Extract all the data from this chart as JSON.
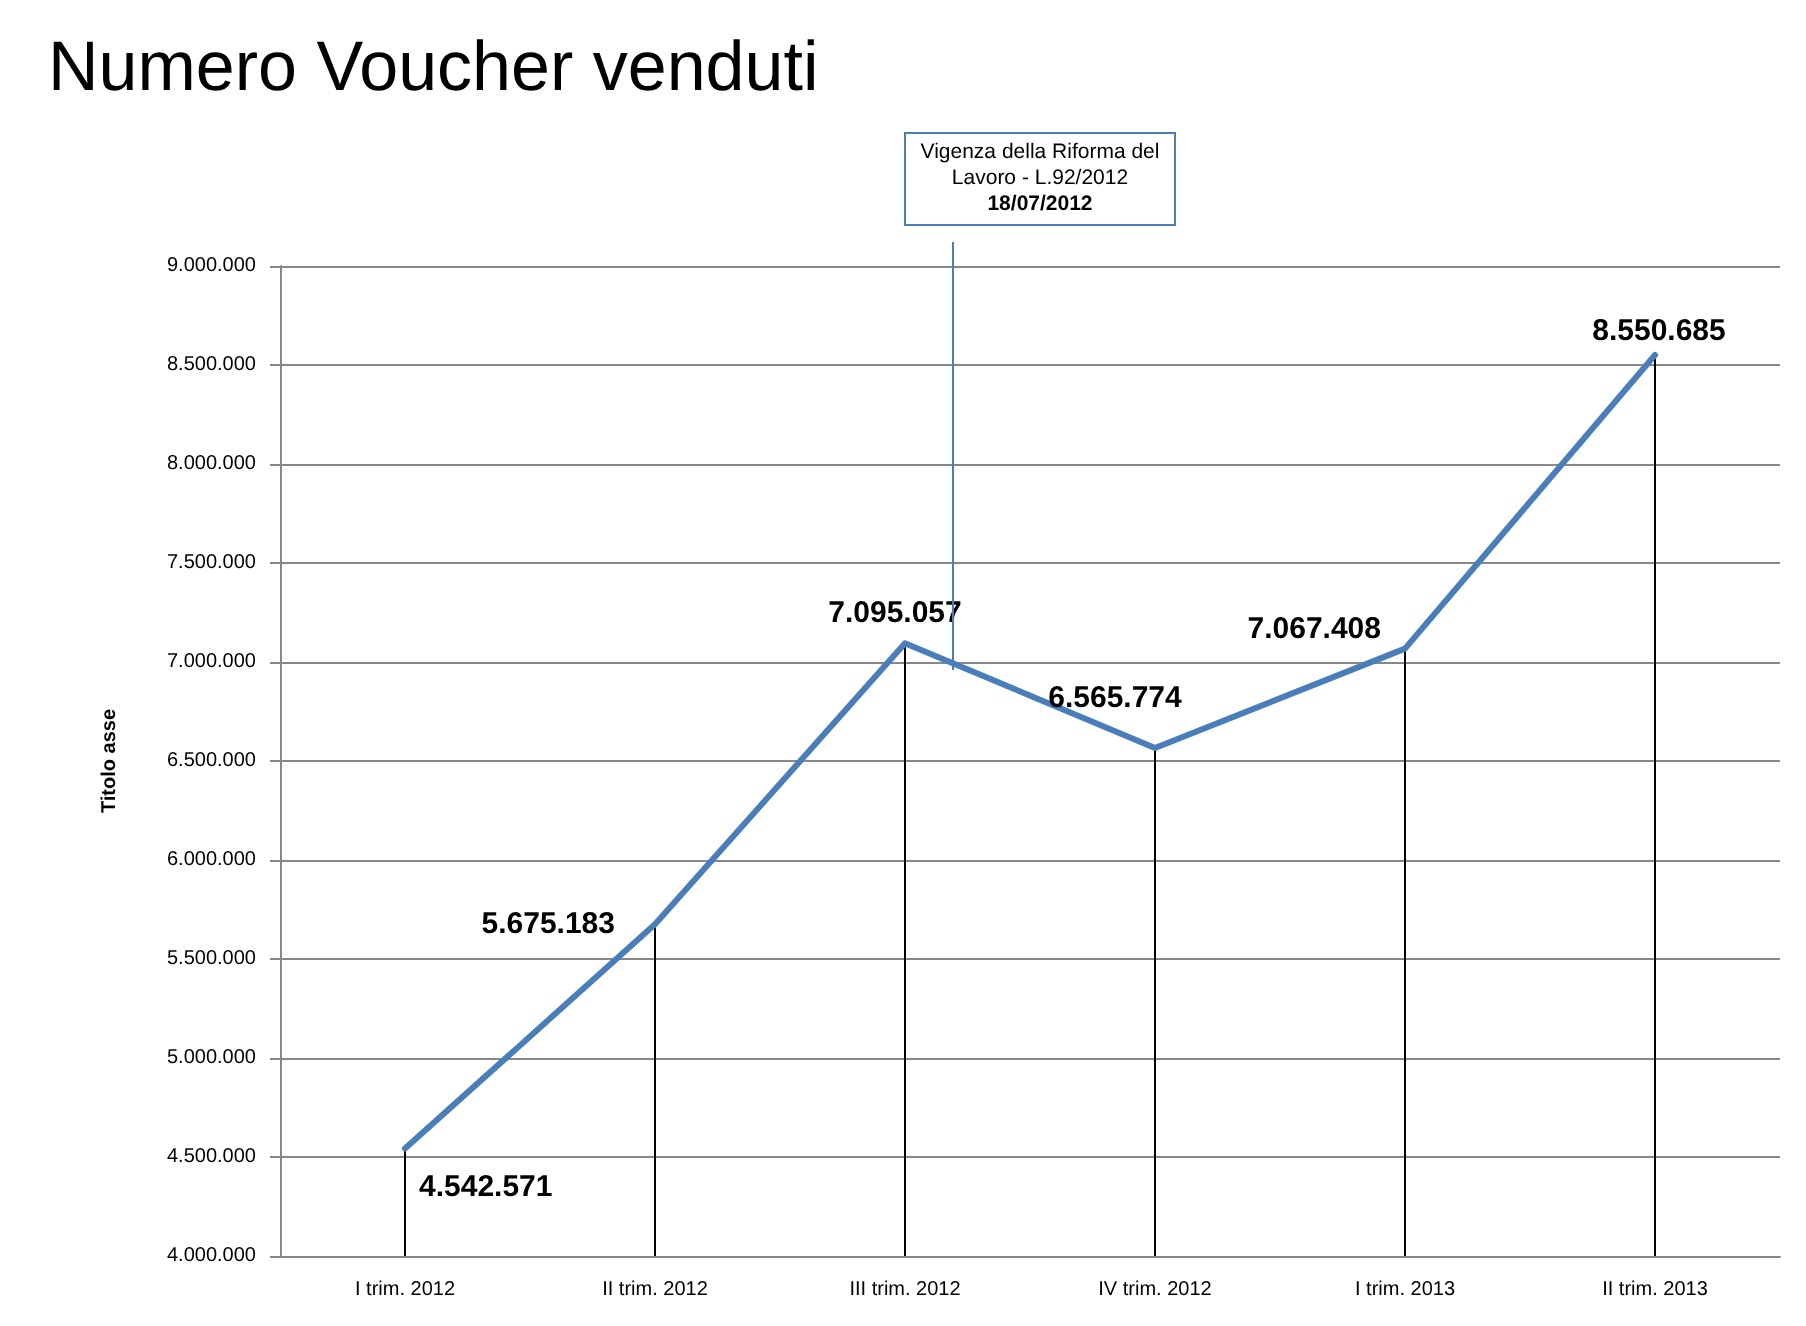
{
  "chart_data": {
    "type": "line",
    "title": "Numero Voucher venduti",
    "ylabel": "Titolo asse",
    "categories": [
      "I trim. 2012",
      "II trim. 2012",
      "III trim. 2012",
      "IV trim. 2012",
      "I trim. 2013",
      "II trim. 2013"
    ],
    "series": [
      {
        "color": "#4a7ebb",
        "values": [
          4542571,
          5675183,
          7095057,
          6565774,
          7067408,
          8550685
        ],
        "value_labels": [
          "4.542.571",
          "5.675.183",
          "7.095.057",
          "6.565.774",
          "7.067.408",
          "8.550.685"
        ]
      },
      {
        "type": "bar",
        "color": "#000000",
        "values": [
          4542571,
          5675183,
          7095057,
          6565774,
          7067408,
          8550685
        ]
      }
    ],
    "ylim": [
      4000000,
      9000000
    ],
    "yticks": [
      {
        "value": 4000000,
        "label": "4.000.000"
      },
      {
        "value": 4500000,
        "label": "4.500.000"
      },
      {
        "value": 5000000,
        "label": "5.000.000"
      },
      {
        "value": 5500000,
        "label": "5.500.000"
      },
      {
        "value": 6000000,
        "label": "6.000.000"
      },
      {
        "value": 6500000,
        "label": "6.500.000"
      },
      {
        "value": 7000000,
        "label": "7.000.000"
      },
      {
        "value": 7500000,
        "label": "7.500.000"
      },
      {
        "value": 8000000,
        "label": "8.000.000"
      },
      {
        "value": 8500000,
        "label": "8.500.000"
      },
      {
        "value": 9000000,
        "label": "9.000.000"
      }
    ],
    "grid": "y",
    "marker": "none",
    "line_style": "solid",
    "annotations": [
      "Vigenza della Riforma del Lavoro - L.92/2012",
      "18/07/2012"
    ]
  }
}
